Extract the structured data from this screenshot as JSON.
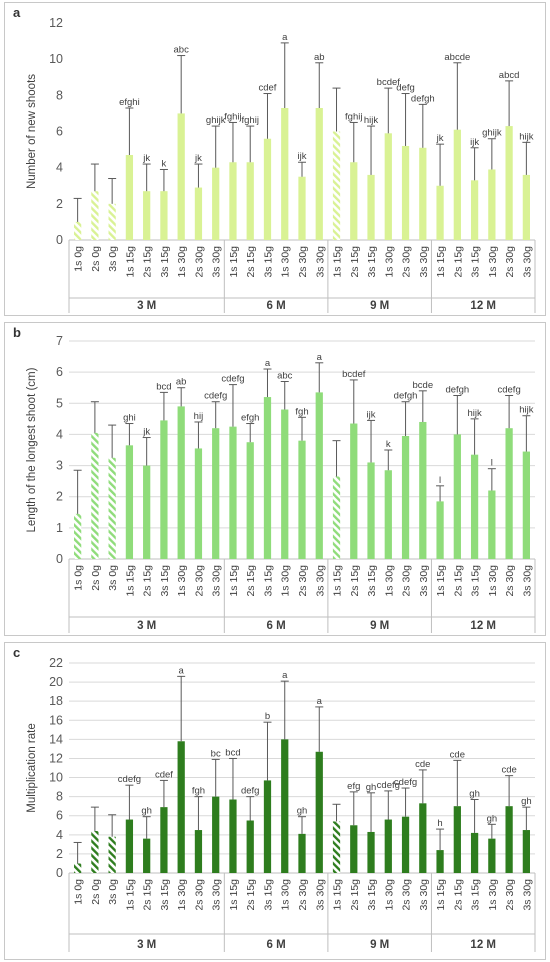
{
  "panels": [
    {
      "letter": "a",
      "chart_data": {
        "type": "bar",
        "ylabel": "Number of new shoots",
        "ylim": [
          0,
          12
        ],
        "yticks": [
          0,
          2,
          4,
          6,
          8,
          10,
          12
        ],
        "color": "#d9f294",
        "gridlines": false,
        "groups": [
          {
            "label": "3 M",
            "categories": [
              "1s 0g",
              "2s 0g",
              "3s 0g",
              "1s 15g",
              "2s 15g",
              "3s 15g",
              "1s 30g",
              "2s 30g",
              "3s 30g"
            ]
          },
          {
            "label": "6 M",
            "categories": [
              "1s 15g",
              "2s 15g",
              "3s 15g",
              "1s 30g",
              "2s 30g",
              "3s 30g"
            ]
          },
          {
            "label": "9 M",
            "categories": [
              "1s 15g",
              "2s 15g",
              "3s 15g",
              "1s 30g",
              "2s 30g",
              "3s 30g"
            ]
          },
          {
            "label": "12 M",
            "categories": [
              "1s 15g",
              "2s 15g",
              "3s 15g",
              "1s 30g",
              "2s 30g",
              "3s 30g"
            ]
          }
        ],
        "values": [
          1.0,
          2.7,
          2.0,
          4.7,
          2.7,
          2.7,
          7.0,
          2.9,
          4.0,
          4.3,
          4.3,
          5.6,
          7.3,
          3.5,
          7.3,
          6.0,
          4.3,
          3.6,
          5.9,
          5.2,
          5.1,
          3.0,
          6.1,
          3.3,
          3.9,
          6.3,
          3.6
        ],
        "error_upper": [
          2.3,
          4.2,
          3.4,
          7.3,
          4.2,
          3.9,
          10.2,
          4.2,
          6.3,
          6.5,
          6.3,
          8.1,
          10.9,
          4.3,
          9.8,
          8.4,
          6.5,
          6.3,
          8.4,
          8.1,
          7.5,
          5.3,
          9.8,
          5.1,
          5.6,
          8.8,
          5.4
        ],
        "hatched": [
          true,
          true,
          true,
          false,
          false,
          false,
          false,
          false,
          false,
          false,
          false,
          false,
          false,
          false,
          false,
          true,
          false,
          false,
          false,
          false,
          false,
          false,
          false,
          false,
          false,
          false,
          false
        ],
        "letters": [
          "",
          "",
          "",
          "efghi",
          "jk",
          "k",
          "abc",
          "jk",
          "ghijk",
          "fghij",
          "fghij",
          "cdef",
          "a",
          "ijk",
          "ab",
          "",
          "fghij",
          "hijk",
          "bcdef",
          "defg",
          "defgh",
          "jk",
          "abcde",
          "ijk",
          "ghijk",
          "abcd",
          "hijk"
        ]
      }
    },
    {
      "letter": "b",
      "chart_data": {
        "type": "bar",
        "ylabel": "Length of the longest shoot (cm)",
        "ylim": [
          0,
          7
        ],
        "yticks": [
          0,
          1,
          2,
          3,
          4,
          5,
          6,
          7
        ],
        "color": "#8fdc7a",
        "gridlines": true,
        "groups": [
          {
            "label": "3 M",
            "categories": [
              "1s 0g",
              "2s 0g",
              "3s 0g",
              "1s 15g",
              "2s 15g",
              "3s 15g",
              "1s 30g",
              "2s 30g",
              "3s 30g"
            ]
          },
          {
            "label": "6 M",
            "categories": [
              "1s 15g",
              "2s 15g",
              "3s 15g",
              "1s 30g",
              "2s 30g",
              "3s 30g"
            ]
          },
          {
            "label": "9 M",
            "categories": [
              "1s 15g",
              "2s 15g",
              "3s 15g",
              "1s 30g",
              "2s 30g",
              "3s 30g"
            ]
          },
          {
            "label": "12 M",
            "categories": [
              "1s 15g",
              "2s 15g",
              "3s 15g",
              "1s 30g",
              "2s 30g",
              "3s 30g"
            ]
          }
        ],
        "values": [
          1.45,
          4.05,
          3.25,
          3.65,
          3.0,
          4.45,
          4.9,
          3.55,
          4.2,
          4.25,
          3.75,
          5.2,
          4.8,
          3.8,
          5.35,
          2.65,
          4.35,
          3.1,
          2.85,
          3.95,
          4.4,
          1.85,
          4.0,
          3.35,
          2.2,
          4.2,
          3.45
        ],
        "error_upper": [
          2.85,
          5.05,
          4.3,
          4.35,
          3.9,
          5.35,
          5.5,
          4.4,
          5.05,
          5.6,
          4.35,
          6.1,
          5.7,
          4.55,
          6.3,
          3.8,
          5.75,
          4.45,
          3.5,
          5.05,
          5.4,
          2.35,
          5.25,
          4.5,
          2.9,
          5.25,
          4.6
        ],
        "hatched": [
          true,
          true,
          true,
          false,
          false,
          false,
          false,
          false,
          false,
          false,
          false,
          false,
          false,
          false,
          false,
          true,
          false,
          false,
          false,
          false,
          false,
          false,
          false,
          false,
          false,
          false,
          false
        ],
        "letters": [
          "",
          "",
          "",
          "ghi",
          "jk",
          "bcd",
          "ab",
          "hij",
          "cdefg",
          "cdefg",
          "efgh",
          "a",
          "abc",
          "fgh",
          "a",
          "",
          "bcdef",
          "ijk",
          "k",
          "defgh",
          "bcde",
          "l",
          "defgh",
          "hijk",
          "l",
          "cdefg",
          "hijk"
        ]
      }
    },
    {
      "letter": "c",
      "chart_data": {
        "type": "bar",
        "ylabel": "Multiplication rate",
        "ylim": [
          0,
          22
        ],
        "yticks": [
          0,
          2,
          4,
          6,
          8,
          10,
          12,
          14,
          16,
          18,
          20,
          22
        ],
        "color": "#2e7d1e",
        "gridlines": true,
        "groups": [
          {
            "label": "3 M",
            "categories": [
              "1s 0g",
              "2s 0g",
              "3s 0g",
              "1s 15g",
              "2s 15g",
              "3s 15g",
              "1s 30g",
              "2s 30g",
              "3s 30g"
            ]
          },
          {
            "label": "6 M",
            "categories": [
              "1s 15g",
              "2s 15g",
              "3s 15g",
              "1s 30g",
              "2s 30g",
              "3s 30g"
            ]
          },
          {
            "label": "9 M",
            "categories": [
              "1s 15g",
              "2s 15g",
              "3s 15g",
              "1s 30g",
              "2s 30g",
              "3s 30g"
            ]
          },
          {
            "label": "12 M",
            "categories": [
              "1s 15g",
              "2s 15g",
              "3s 15g",
              "1s 30g",
              "2s 30g",
              "3s 30g"
            ]
          }
        ],
        "values": [
          1.0,
          4.4,
          3.8,
          5.6,
          3.6,
          6.9,
          13.8,
          4.5,
          8.0,
          7.7,
          5.5,
          9.7,
          14.0,
          4.1,
          12.7,
          5.4,
          5.0,
          4.3,
          5.6,
          5.9,
          7.3,
          2.4,
          7.0,
          4.2,
          3.6,
          7.0,
          4.5
        ],
        "error_upper": [
          3.2,
          6.9,
          6.1,
          9.2,
          5.9,
          9.7,
          20.6,
          8.0,
          11.9,
          12.0,
          8.0,
          15.8,
          20.1,
          5.9,
          17.4,
          7.2,
          8.5,
          8.4,
          8.6,
          8.9,
          10.8,
          4.6,
          11.8,
          7.7,
          5.1,
          10.2,
          6.9
        ],
        "hatched": [
          true,
          true,
          true,
          false,
          false,
          false,
          false,
          false,
          false,
          false,
          false,
          false,
          false,
          false,
          false,
          true,
          false,
          false,
          false,
          false,
          false,
          false,
          false,
          false,
          false,
          false,
          false
        ],
        "letters": [
          "",
          "",
          "",
          "cdefg",
          "gh",
          "cdef",
          "a",
          "fgh",
          "bc",
          "bcd",
          "defg",
          "b",
          "a",
          "gh",
          "a",
          "",
          "efg",
          "gh",
          "cdefg",
          "cdefg",
          "cde",
          "h",
          "cde",
          "gh",
          "gh",
          "cde",
          "gh"
        ]
      }
    }
  ]
}
